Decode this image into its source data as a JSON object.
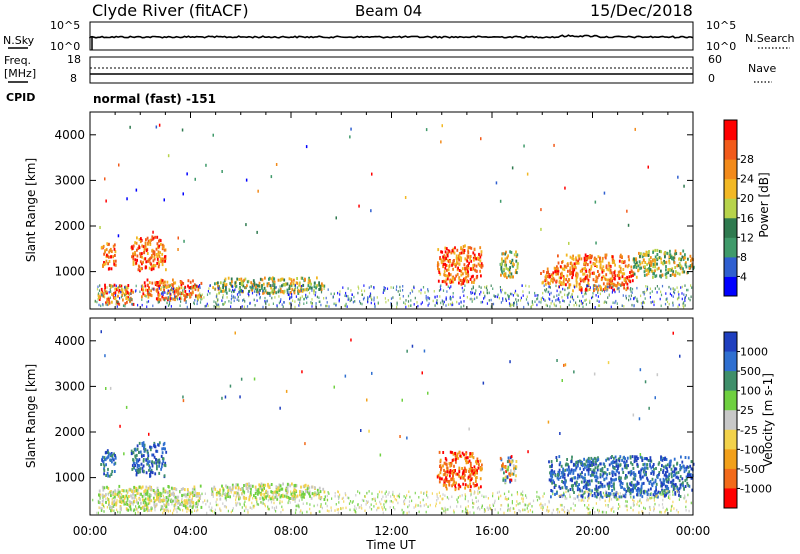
{
  "header": {
    "station": "Clyde River (fitACF)",
    "beam": "Beam 04",
    "date": "15/Dec/2018"
  },
  "noise_panel": {
    "left_label": "N.Sky",
    "right_label": "N.Search",
    "left_ticks": [
      "10^5",
      "10^0"
    ],
    "right_ticks": [
      "10^5",
      "10^0"
    ]
  },
  "freq_panel": {
    "left_label_1": "Freq.",
    "left_label_2": "[MHz]",
    "left_ticks": [
      "18",
      "8"
    ],
    "right_label": "Nave",
    "right_ticks": [
      "60",
      "0"
    ],
    "cpid_label": "CPID",
    "cpid_text": "normal (fast) -151"
  },
  "chart_data": [
    {
      "type": "heatmap",
      "title": "",
      "xlabel": "",
      "ylabel": "Slant Range [km]",
      "xlim": [
        "00:00",
        "00:00"
      ],
      "ylim": [
        180,
        4500
      ],
      "x_ticks": [
        "00:00",
        "04:00",
        "08:00",
        "12:00",
        "16:00",
        "20:00",
        "00:00"
      ],
      "y_ticks": [
        "1000",
        "2000",
        "3000",
        "4000"
      ],
      "colorbar": {
        "label": "Power [dB]",
        "ticks": [
          "4",
          "8",
          "12",
          "16",
          "20",
          "24",
          "28"
        ],
        "colors": [
          "#0000ff",
          "#2f5fd0",
          "#3f9a6a",
          "#2f7a4f",
          "#b7d34b",
          "#f2b824",
          "#f28a1a",
          "#f25a1a",
          "#ff0000"
        ]
      },
      "regions": [
        {
          "t0": 0.4,
          "t1": 1.0,
          "r0": 1050,
          "r1": 1650,
          "level": "high"
        },
        {
          "t0": 1.6,
          "t1": 3.0,
          "r0": 1050,
          "r1": 1800,
          "level": "high"
        },
        {
          "t0": 0.3,
          "t1": 1.7,
          "r0": 300,
          "r1": 750,
          "level": "high"
        },
        {
          "t0": 2.0,
          "t1": 4.4,
          "r0": 400,
          "r1": 850,
          "level": "high"
        },
        {
          "t0": 4.8,
          "t1": 9.3,
          "r0": 550,
          "r1": 900,
          "level": "mid"
        },
        {
          "t0": 13.8,
          "t1": 15.6,
          "r0": 750,
          "r1": 1600,
          "level": "high"
        },
        {
          "t0": 16.3,
          "t1": 17.0,
          "r0": 900,
          "r1": 1500,
          "level": "mid"
        },
        {
          "t0": 17.9,
          "t1": 18.4,
          "r0": 750,
          "r1": 1100,
          "level": "high"
        },
        {
          "t0": 18.4,
          "t1": 21.6,
          "r0": 600,
          "r1": 1400,
          "level": "high"
        },
        {
          "t0": 21.6,
          "t1": 24.0,
          "r0": 900,
          "r1": 1500,
          "level": "mid"
        }
      ]
    },
    {
      "type": "heatmap",
      "title": "",
      "xlabel": "Time UT",
      "ylabel": "Slant Range [km]",
      "xlim": [
        "00:00",
        "00:00"
      ],
      "ylim": [
        180,
        4500
      ],
      "x_ticks": [
        "00:00",
        "04:00",
        "08:00",
        "12:00",
        "16:00",
        "20:00",
        "00:00"
      ],
      "y_ticks": [
        "1000",
        "2000",
        "3000",
        "4000"
      ],
      "colorbar": {
        "label": "Velocity [m s-1]",
        "ticks": [
          "1000",
          "500",
          "100",
          "25",
          "-25",
          "-100",
          "-500",
          "-1000"
        ],
        "colors": [
          "#1f3fbf",
          "#2f6fd0",
          "#3f8f6a",
          "#6fd040",
          "#c8c8c8",
          "#f2d24b",
          "#f2a01a",
          "#f26a1a",
          "#ff0000"
        ]
      },
      "regions": [
        {
          "t0": 0.4,
          "t1": 1.0,
          "r0": 1050,
          "r1": 1650,
          "level": "positive"
        },
        {
          "t0": 1.6,
          "t1": 3.0,
          "r0": 1050,
          "r1": 1800,
          "level": "positive"
        },
        {
          "t0": 0.3,
          "t1": 4.4,
          "r0": 300,
          "r1": 850,
          "level": "low"
        },
        {
          "t0": 4.8,
          "t1": 9.3,
          "r0": 550,
          "r1": 900,
          "level": "low"
        },
        {
          "t0": 13.8,
          "t1": 15.6,
          "r0": 750,
          "r1": 1600,
          "level": "negative"
        },
        {
          "t0": 16.3,
          "t1": 17.0,
          "r0": 900,
          "r1": 1500,
          "level": "mixed"
        },
        {
          "t0": 18.2,
          "t1": 24.0,
          "r0": 600,
          "r1": 1500,
          "level": "positive"
        }
      ]
    }
  ]
}
